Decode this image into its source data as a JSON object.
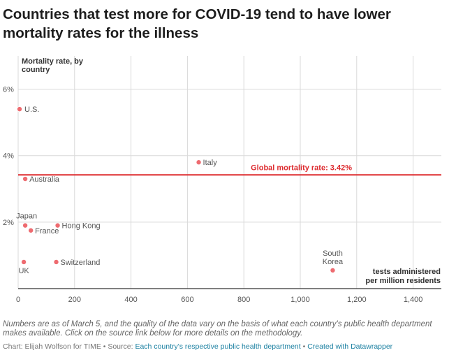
{
  "title": "Countries that test more for COVID-19 tend to have lower mortality rates for the illness",
  "notes": "Numbers are as of March 5, and the quality of the data vary on the basis of what each country's public health department makes available. Click on the source link below for more details on the methodology.",
  "byline": {
    "chart_label": "Chart: Elijah Wolfson for TIME",
    "separator": " • ",
    "source_label": "Source: ",
    "source_link": "Each country's respective public health department",
    "datawrapper": "Created with Datawrapper"
  },
  "colors": {
    "point": "#ee6b70",
    "reference_line": "#dd2b2f",
    "grid": "#d9d9d9",
    "axis": "#333333"
  },
  "chart_data": {
    "type": "scatter",
    "ylabel_lines": [
      "Mortality rate, by",
      "country"
    ],
    "xlabel_lines": [
      "tests administered",
      "per million residents"
    ],
    "xlim": [
      0,
      1500
    ],
    "ylim": [
      0,
      7
    ],
    "xticks": [
      0,
      200,
      400,
      600,
      800,
      1000,
      1200,
      1400
    ],
    "xtick_labels": [
      "0",
      "200",
      "400",
      "600",
      "800",
      "1,000",
      "1,200",
      "1,400"
    ],
    "yticks": [
      2,
      4,
      6
    ],
    "ytick_labels": [
      "2%",
      "4%",
      "6%"
    ],
    "grid": true,
    "reference_line": {
      "y": 3.42,
      "label": "Global mortality rate: 3.42%"
    },
    "points": [
      {
        "label": "U.S.",
        "x": 5,
        "y": 5.4
      },
      {
        "label": "Italy",
        "x": 640,
        "y": 3.8
      },
      {
        "label": "Australia",
        "x": 25,
        "y": 3.3
      },
      {
        "label": "Japan",
        "x": 25,
        "y": 1.9
      },
      {
        "label": "France",
        "x": 45,
        "y": 1.75
      },
      {
        "label": "Hong Kong",
        "x": 140,
        "y": 1.9
      },
      {
        "label": "Switzerland",
        "x": 135,
        "y": 0.8
      },
      {
        "label": "UK",
        "x": 20,
        "y": 0.8
      },
      {
        "label": "South Korea",
        "x": 1115,
        "y": 0.55
      }
    ]
  }
}
